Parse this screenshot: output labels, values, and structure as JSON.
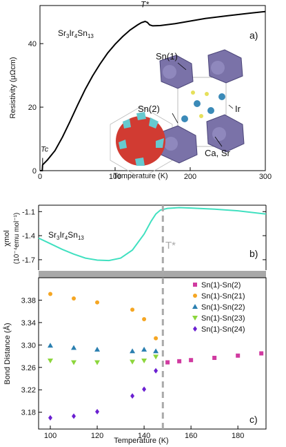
{
  "chart_data": [
    {
      "type": "line",
      "panel_label": "a)",
      "compound": "Sr3Ir4Sn13",
      "xlabel": "Temperature  (K)",
      "ylabel": "Resistivity  (μΩcm)",
      "xlim": [
        0,
        300
      ],
      "ylim": [
        0,
        52
      ],
      "xticks": [
        "0",
        "100",
        "200",
        "300"
      ],
      "yticks": [
        "0",
        "20",
        "40"
      ],
      "annotations": {
        "tstar": "T*",
        "tc": "Tc"
      },
      "inset_labels": [
        "Sn(1)",
        "Sn(2)",
        "Ir",
        "Ca, Sr"
      ],
      "series": [
        {
          "x": [
            0,
            3,
            3.5,
            5,
            10,
            20,
            30,
            40,
            50,
            60,
            70,
            80,
            90,
            100,
            110,
            120,
            130,
            135,
            140,
            143,
            146,
            150,
            160,
            180,
            200,
            220,
            250,
            280,
            300
          ],
          "y": [
            0,
            0,
            1.8,
            2.2,
            3.4,
            6.3,
            10.6,
            15.5,
            20.6,
            25.5,
            29.8,
            33.6,
            37.0,
            39.8,
            42.2,
            44.3,
            45.9,
            46.6,
            47.0,
            46.7,
            45.9,
            45.6,
            45.7,
            46.3,
            47.1,
            47.9,
            48.8,
            49.6,
            50.1
          ]
        }
      ]
    },
    {
      "type": "line",
      "panel_label": "b)",
      "compound": "Sr3Ir4Sn13",
      "ylabel_top": "χmol",
      "ylabel_bottom": "(10⁻⁴emu mol⁻¹)",
      "xlim": [
        95,
        192
      ],
      "ylim": [
        -1.83,
        -1.02
      ],
      "yticks": [
        "-1.1",
        "-1.4",
        "-1.7"
      ],
      "tstar_label": "T*",
      "color": "#40e0c0",
      "series": [
        {
          "x": [
            95,
            100,
            105,
            110,
            115,
            120,
            125,
            130,
            135,
            140,
            143,
            145,
            147,
            150,
            155,
            160,
            170,
            180,
            192
          ],
          "y": [
            -1.43,
            -1.5,
            -1.57,
            -1.63,
            -1.68,
            -1.705,
            -1.71,
            -1.68,
            -1.58,
            -1.38,
            -1.22,
            -1.13,
            -1.08,
            -1.06,
            -1.05,
            -1.055,
            -1.07,
            -1.09,
            -1.13
          ]
        }
      ]
    },
    {
      "type": "scatter",
      "panel_label": "c)",
      "xlabel": "Temperature (K)",
      "ylabel": "Bond Distance (Å)",
      "xlim": [
        95,
        192
      ],
      "ylim": [
        3.15,
        3.42
      ],
      "xticks": [
        "100",
        "120",
        "140",
        "160",
        "180"
      ],
      "yticks": [
        "3.18",
        "3.22",
        "3.26",
        "3.30",
        "3.34",
        "3.38"
      ],
      "tstar_x": 148,
      "series": [
        {
          "name": "Sn(1)-Sn(2)",
          "color": "#d03aa0",
          "marker": "square",
          "x": [
            150,
            155,
            160,
            170,
            180,
            190
          ],
          "y": [
            3.269,
            3.271,
            3.273,
            3.277,
            3.281,
            3.285
          ]
        },
        {
          "name": "Sn(1)-Sn(21)",
          "color": "#f5a623",
          "marker": "circle",
          "x": [
            100,
            110,
            120,
            135,
            140,
            145
          ],
          "y": [
            3.391,
            3.383,
            3.376,
            3.363,
            3.346,
            3.312
          ]
        },
        {
          "name": "Sn(1)-Sn(22)",
          "color": "#2a7fb0",
          "marker": "triangle-up",
          "x": [
            100,
            110,
            120,
            135,
            140,
            145
          ],
          "y": [
            3.299,
            3.295,
            3.292,
            3.289,
            3.292,
            3.289
          ]
        },
        {
          "name": "Sn(1)-Sn(23)",
          "color": "#8cd63c",
          "marker": "triangle-down",
          "x": [
            100,
            110,
            120,
            135,
            140,
            145
          ],
          "y": [
            3.272,
            3.269,
            3.269,
            3.27,
            3.272,
            3.279
          ]
        },
        {
          "name": "Sn(1)-Sn(24)",
          "color": "#6a1fd1",
          "marker": "diamond",
          "x": [
            100,
            110,
            120,
            135,
            140,
            145
          ],
          "y": [
            3.17,
            3.173,
            3.181,
            3.209,
            3.221,
            3.254
          ]
        }
      ]
    }
  ]
}
